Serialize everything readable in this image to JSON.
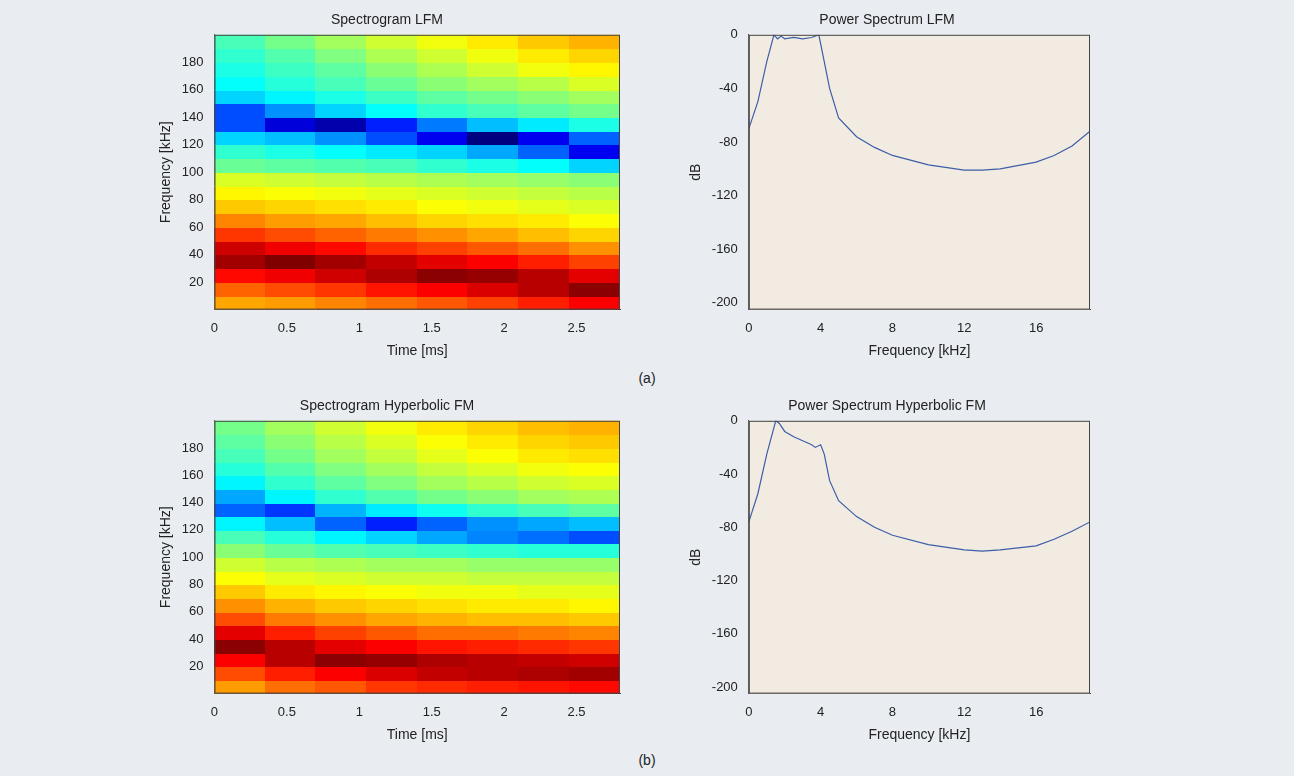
{
  "panel_labels": [
    "(a)",
    "(b)"
  ],
  "chart_data": [
    {
      "type": "heatmap",
      "title": "Spectrogram LFM",
      "x_label": "Time [ms]",
      "y_label": "Frequency [kHz]",
      "xlim": [
        0,
        2.8
      ],
      "ylim": [
        0,
        200
      ],
      "xticks": [
        0,
        0.5,
        1,
        1.5,
        2,
        2.5
      ],
      "yticks": [
        20,
        40,
        60,
        80,
        100,
        120,
        140,
        160,
        180
      ],
      "grid": false,
      "x_edges": [
        0,
        0.35,
        0.7,
        1.05,
        1.4,
        1.75,
        2.1,
        2.45,
        2.8
      ],
      "y_edges": [
        0,
        10,
        20,
        30,
        40,
        50,
        60,
        70,
        80,
        90,
        100,
        110,
        120,
        130,
        140,
        150,
        160,
        170,
        180,
        190,
        200
      ],
      "color_range": [
        -90,
        0
      ],
      "cells": [
        [
          -26,
          -25,
          -23,
          -21,
          -19,
          -17,
          -14,
          -11
        ],
        [
          -20,
          -18,
          -16,
          -13,
          -11,
          -8,
          -5,
          -1
        ],
        [
          -12,
          -10,
          -7,
          -4,
          -1,
          -2,
          -5,
          -9
        ],
        [
          -3,
          0,
          -3,
          -6,
          -9,
          -11,
          -14,
          -17
        ],
        [
          -7,
          -10,
          -12,
          -15,
          -17,
          -19,
          -21,
          -24
        ],
        [
          -16,
          -18,
          -20,
          -22,
          -24,
          -26,
          -28,
          -30
        ],
        [
          -23,
          -25,
          -26,
          -28,
          -30,
          -31,
          -32,
          -34
        ],
        [
          -29,
          -30,
          -31,
          -32,
          -34,
          -35,
          -36,
          -37
        ],
        [
          -33,
          -34,
          -35,
          -36,
          -37,
          -38,
          -39,
          -40
        ],
        [
          -37,
          -38,
          -39,
          -40,
          -41,
          -42,
          -43,
          -44
        ],
        [
          -47,
          -48,
          -49,
          -50,
          -52,
          -54,
          -56,
          -60
        ],
        [
          -52,
          -54,
          -56,
          -58,
          -60,
          -64,
          -70,
          -80
        ],
        [
          -60,
          -62,
          -66,
          -72,
          -80,
          -90,
          -80,
          -70
        ],
        [
          -72,
          -82,
          -86,
          -76,
          -68,
          -62,
          -58,
          -54
        ],
        [
          -72,
          -66,
          -60,
          -56,
          -52,
          -50,
          -48,
          -46
        ],
        [
          -60,
          -57,
          -54,
          -51,
          -48,
          -46,
          -44,
          -42
        ],
        [
          -56,
          -53,
          -50,
          -47,
          -44,
          -42,
          -40,
          -37
        ],
        [
          -54,
          -51,
          -48,
          -44,
          -41,
          -38,
          -35,
          -33
        ],
        [
          -52,
          -49,
          -45,
          -41,
          -38,
          -35,
          -32,
          -30
        ],
        [
          -50,
          -46,
          -42,
          -38,
          -35,
          -32,
          -29,
          -27
        ]
      ]
    },
    {
      "type": "line",
      "title": "Power Spectrum LFM",
      "x_label": "Frequency [kHz]",
      "y_label": "dB",
      "xlim": [
        0,
        19
      ],
      "ylim": [
        -205,
        0
      ],
      "xticks": [
        0,
        4,
        8,
        12,
        16
      ],
      "yticks": [
        0,
        -40,
        -80,
        -120,
        -160,
        -200
      ],
      "grid": false,
      "color": "#3d5ea8",
      "x": [
        0,
        0.5,
        1,
        1.4,
        1.6,
        1.8,
        2,
        2.5,
        3,
        3.5,
        3.9,
        4.2,
        4.5,
        5,
        6,
        7,
        8,
        10,
        12,
        13,
        14,
        16,
        17,
        18,
        19
      ],
      "values": [
        -70,
        -50,
        -20,
        0,
        -3,
        -1,
        -3,
        -2,
        -3,
        -2,
        0,
        -20,
        -40,
        -62,
        -76,
        -84,
        -90,
        -97,
        -101,
        -101,
        -100,
        -95,
        -90,
        -83,
        -72
      ]
    },
    {
      "type": "heatmap",
      "title": "Spectrogram Hyperbolic FM",
      "x_label": "Time [ms]",
      "y_label": "Frequency [kHz]",
      "xlim": [
        0,
        2.8
      ],
      "ylim": [
        0,
        200
      ],
      "xticks": [
        0,
        0.5,
        1,
        1.5,
        2,
        2.5
      ],
      "yticks": [
        20,
        40,
        60,
        80,
        100,
        120,
        140,
        160,
        180
      ],
      "grid": false,
      "x_edges": [
        0,
        0.35,
        0.7,
        1.05,
        1.4,
        1.75,
        2.1,
        2.45,
        2.8
      ],
      "y_edges": [
        0,
        10,
        20,
        30,
        40,
        50,
        60,
        70,
        80,
        90,
        100,
        110,
        120,
        130,
        140,
        150,
        160,
        170,
        180,
        190,
        200
      ],
      "color_range": [
        -90,
        0
      ],
      "cells": [
        [
          -25,
          -21,
          -19,
          -16,
          -15,
          -14,
          -13,
          -12
        ],
        [
          -18,
          -14,
          -11,
          -8,
          -6,
          -5,
          -4,
          -3
        ],
        [
          -11,
          -5,
          -1,
          -2,
          -4,
          -5,
          -6,
          -7
        ],
        [
          -1,
          -5,
          -9,
          -11,
          -13,
          -14,
          -15,
          -16
        ],
        [
          -9,
          -14,
          -17,
          -19,
          -21,
          -21,
          -22,
          -23
        ],
        [
          -18,
          -22,
          -24,
          -26,
          -27,
          -28,
          -28,
          -29
        ],
        [
          -24,
          -27,
          -29,
          -30,
          -31,
          -32,
          -32,
          -33
        ],
        [
          -29,
          -32,
          -33,
          -34,
          -35,
          -35,
          -36,
          -36
        ],
        [
          -34,
          -36,
          -37,
          -38,
          -38,
          -39,
          -39,
          -39
        ],
        [
          -38,
          -40,
          -41,
          -42,
          -42,
          -43,
          -43,
          -43
        ],
        [
          -44,
          -47,
          -49,
          -50,
          -51,
          -52,
          -53,
          -53
        ],
        [
          -50,
          -53,
          -57,
          -60,
          -64,
          -67,
          -69,
          -72
        ],
        [
          -57,
          -62,
          -70,
          -76,
          -70,
          -66,
          -64,
          -62
        ],
        [
          -70,
          -74,
          -63,
          -58,
          -55,
          -52,
          -50,
          -48
        ],
        [
          -64,
          -57,
          -52,
          -49,
          -46,
          -44,
          -42,
          -41
        ],
        [
          -57,
          -52,
          -48,
          -45,
          -42,
          -40,
          -38,
          -37
        ],
        [
          -53,
          -49,
          -45,
          -42,
          -39,
          -37,
          -35,
          -34
        ],
        [
          -50,
          -46,
          -42,
          -39,
          -36,
          -34,
          -32,
          -31
        ],
        [
          -48,
          -44,
          -40,
          -37,
          -34,
          -32,
          -30,
          -29
        ],
        [
          -46,
          -42,
          -38,
          -35,
          -32,
          -30,
          -28,
          -27
        ]
      ]
    },
    {
      "type": "line",
      "title": "Power Spectrum Hyperbolic FM",
      "x_label": "Frequency [kHz]",
      "y_label": "dB",
      "xlim": [
        0,
        19
      ],
      "ylim": [
        -205,
        0
      ],
      "xticks": [
        0,
        4,
        8,
        12,
        16
      ],
      "yticks": [
        0,
        -40,
        -80,
        -120,
        -160,
        -200
      ],
      "grid": false,
      "color": "#3d5ea8",
      "x": [
        0,
        0.5,
        1,
        1.5,
        1.7,
        2,
        2.5,
        3,
        3.5,
        3.7,
        4,
        4.2,
        4.5,
        5,
        6,
        7,
        8,
        10,
        12,
        13,
        14,
        16,
        17,
        18,
        19
      ],
      "values": [
        -76,
        -55,
        -25,
        0,
        -2,
        -8,
        -12,
        -15,
        -18,
        -20,
        -18,
        -25,
        -45,
        -60,
        -72,
        -80,
        -86,
        -93,
        -97,
        -98,
        -97,
        -94,
        -89,
        -83,
        -76
      ]
    }
  ]
}
